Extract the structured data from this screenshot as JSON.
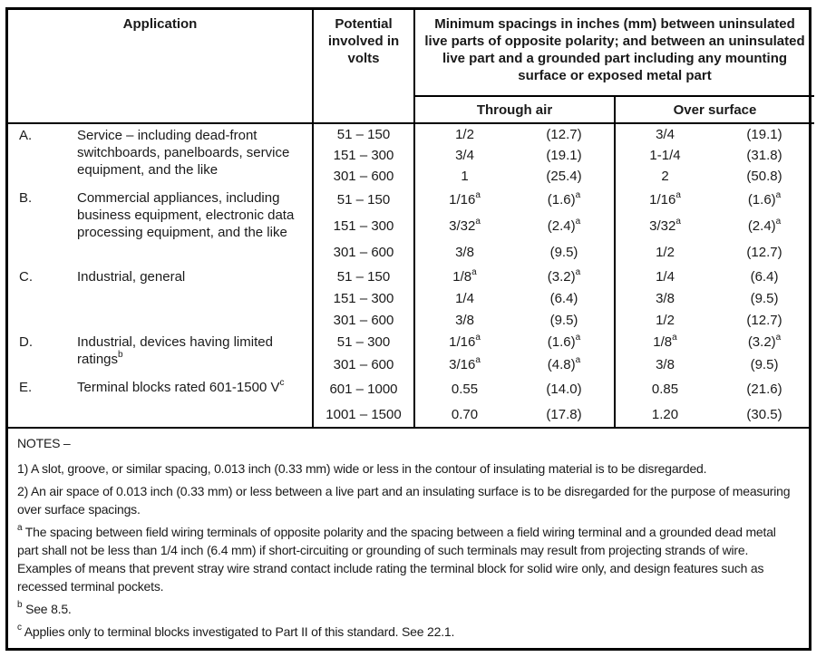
{
  "table": {
    "header": {
      "application": "Application",
      "potential": "Potential involved in volts",
      "spacings": "Minimum spacings in inches (mm) between uninsulated live parts of opposite polarity; and between an uninsulated live part and a grounded part including any mounting surface or exposed metal part",
      "through_air": "Through air",
      "over_surface": "Over surface"
    },
    "rows": [
      {
        "letter": "A.",
        "application": "Service – including dead-front switchboards, panelboards, service equipment, and the like",
        "entries": [
          {
            "volts": "51 – 150",
            "through_air_in": "1/2",
            "through_air_mm": "(12.7)",
            "over_surface_in": "3/4",
            "over_surface_mm": "(19.1)"
          },
          {
            "volts": "151 – 300",
            "through_air_in": "3/4",
            "through_air_mm": "(19.1)",
            "over_surface_in": "1-1/4",
            "over_surface_mm": "(31.8)"
          },
          {
            "volts": "301 – 600",
            "through_air_in": "1",
            "through_air_mm": "(25.4)",
            "over_surface_in": "2",
            "over_surface_mm": "(50.8)"
          }
        ]
      },
      {
        "letter": "B.",
        "application": "Commercial appliances, including business equipment, electronic data processing equipment, and the like",
        "entries": [
          {
            "volts": "51 – 150",
            "through_air_in": "1/16^a",
            "through_air_mm": "(1.6)^a",
            "over_surface_in": "1/16^a",
            "over_surface_mm": "(1.6)^a"
          },
          {
            "volts": "151 – 300",
            "through_air_in": "3/32^a",
            "through_air_mm": "(2.4)^a",
            "over_surface_in": "3/32^a",
            "over_surface_mm": "(2.4)^a"
          },
          {
            "volts": "301 – 600",
            "through_air_in": "3/8",
            "through_air_mm": "(9.5)",
            "over_surface_in": "1/2",
            "over_surface_mm": "(12.7)"
          }
        ]
      },
      {
        "letter": "C.",
        "application": "Industrial, general",
        "entries": [
          {
            "volts": "51 – 150",
            "through_air_in": "1/8^a",
            "through_air_mm": "(3.2)^a",
            "over_surface_in": "1/4",
            "over_surface_mm": "(6.4)"
          },
          {
            "volts": "151 – 300",
            "through_air_in": "1/4",
            "through_air_mm": "(6.4)",
            "over_surface_in": "3/8",
            "over_surface_mm": "(9.5)"
          },
          {
            "volts": "301 – 600",
            "through_air_in": "3/8",
            "through_air_mm": "(9.5)",
            "over_surface_in": "1/2",
            "over_surface_mm": "(12.7)"
          }
        ]
      },
      {
        "letter": "D.",
        "application": "Industrial, devices having limited ratings^b",
        "entries": [
          {
            "volts": "51 – 300",
            "through_air_in": "1/16^a",
            "through_air_mm": "(1.6)^a",
            "over_surface_in": "1/8^a",
            "over_surface_mm": "(3.2)^a"
          },
          {
            "volts": "301 – 600",
            "through_air_in": "3/16^a",
            "through_air_mm": "(4.8)^a",
            "over_surface_in": "3/8",
            "over_surface_mm": "(9.5)"
          }
        ]
      },
      {
        "letter": "E.",
        "application": "Terminal blocks rated 601-1500 V^c",
        "entries": [
          {
            "volts": "601 – 1000",
            "through_air_in": "0.55",
            "through_air_mm": "(14.0)",
            "over_surface_in": "0.85",
            "over_surface_mm": "(21.6)"
          },
          {
            "volts": "1001 – 1500",
            "through_air_in": "0.70",
            "through_air_mm": "(17.8)",
            "over_surface_in": "1.20",
            "over_surface_mm": "(30.5)"
          }
        ]
      }
    ]
  },
  "notes": {
    "title": "NOTES –",
    "items": [
      "1) A slot, groove, or similar spacing, 0.013 inch (0.33 mm) wide or less in the contour of insulating material is to be disregarded.",
      "2) An air space of 0.013 inch (0.33 mm) or less between a live part and an insulating surface is to be disregarded for the purpose of measuring over surface spacings.",
      "^a The spacing between field wiring terminals of opposite polarity and the spacing between a field wiring terminal and a grounded dead metal part shall not be less than 1/4 inch (6.4 mm) if short-circuiting or grounding of such terminals may result from projecting strands of wire. Examples of means that prevent stray wire strand contact include rating the terminal block for solid wire only, and design features such as recessed terminal pockets.",
      "^b See 8.5.",
      "^c Applies only to terminal blocks investigated to Part II of this standard. See 22.1."
    ]
  }
}
